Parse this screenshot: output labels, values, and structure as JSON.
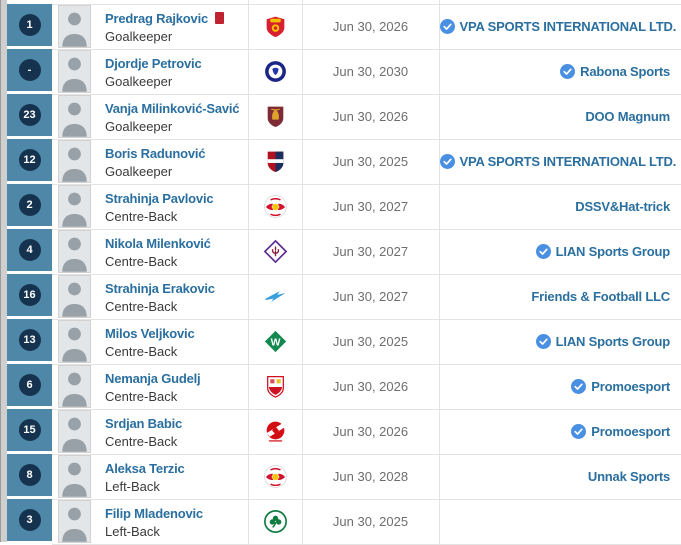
{
  "colors": {
    "number_cell_bg": "#4e87a7",
    "number_circle_bg": "#15334e",
    "link_blue": "#2a6f9f",
    "verified_blue": "#4a90e2",
    "red_card_red": "#bf2430",
    "row_border": "#e3e3e3",
    "date_text": "#6e6e6e",
    "position_text": "#3a3a3a",
    "page_strip": "#cfcfcf"
  },
  "table": {
    "rows": [
      {
        "number": "1",
        "name": "Predrag Rajkovic",
        "position": "Goalkeeper",
        "badge": "mallorca-crest",
        "red_card": true,
        "contract_until": "Jun 30, 2026",
        "agent": "VPA SPORTS INTERNATIONAL LTD.",
        "agent_verified": true
      },
      {
        "number": "-",
        "name": "Djordje Petrovic",
        "position": "Goalkeeper",
        "badge": "chelsea-crest",
        "red_card": false,
        "contract_until": "Jun 30, 2030",
        "agent": "Rabona Sports",
        "agent_verified": true
      },
      {
        "number": "23",
        "name": "Vanja Milinković-Savić",
        "position": "Goalkeeper",
        "badge": "torino-crest",
        "red_card": false,
        "contract_until": "Jun 30, 2026",
        "agent": "DOO Magnum",
        "agent_verified": false
      },
      {
        "number": "12",
        "name": "Boris Radunović",
        "position": "Goalkeeper",
        "badge": "cagliari-crest",
        "red_card": false,
        "contract_until": "Jun 30, 2025",
        "agent": "VPA SPORTS INTERNATIONAL LTD.",
        "agent_verified": true
      },
      {
        "number": "2",
        "name": "Strahinja Pavlovic",
        "position": "Centre-Back",
        "badge": "redbull-salzburg-crest",
        "red_card": false,
        "contract_until": "Jun 30, 2027",
        "agent": "DSSV&Hat-trick",
        "agent_verified": false
      },
      {
        "number": "4",
        "name": "Nikola Milenković",
        "position": "Centre-Back",
        "badge": "fiorentina-crest",
        "red_card": false,
        "contract_until": "Jun 30, 2027",
        "agent": "LIAN Sports Group",
        "agent_verified": true
      },
      {
        "number": "16",
        "name": "Strahinja Erakovic",
        "position": "Centre-Back",
        "badge": "zenit-crest",
        "red_card": false,
        "contract_until": "Jun 30, 2027",
        "agent": "Friends & Football LLC",
        "agent_verified": false
      },
      {
        "number": "13",
        "name": "Milos Veljkovic",
        "position": "Centre-Back",
        "badge": "werder-bremen-crest",
        "red_card": false,
        "contract_until": "Jun 30, 2025",
        "agent": "LIAN Sports Group",
        "agent_verified": true
      },
      {
        "number": "6",
        "name": "Nemanja Gudelj",
        "position": "Centre-Back",
        "badge": "sevilla-crest",
        "red_card": false,
        "contract_until": "Jun 30, 2026",
        "agent": "Promoesport",
        "agent_verified": true
      },
      {
        "number": "15",
        "name": "Srdjan Babic",
        "position": "Centre-Back",
        "badge": "spartak-moscow-crest",
        "red_card": false,
        "contract_until": "Jun 30, 2026",
        "agent": "Promoesport",
        "agent_verified": true
      },
      {
        "number": "8",
        "name": "Aleksa Terzic",
        "position": "Left-Back",
        "badge": "redbull-salzburg-crest",
        "red_card": false,
        "contract_until": "Jun 30, 2028",
        "agent": "Unnak Sports",
        "agent_verified": false
      },
      {
        "number": "3",
        "name": "Filip Mladenovic",
        "position": "Left-Back",
        "badge": "panathinaikos-crest",
        "red_card": false,
        "contract_until": "Jun 30, 2025",
        "agent": "",
        "agent_verified": false
      }
    ]
  }
}
